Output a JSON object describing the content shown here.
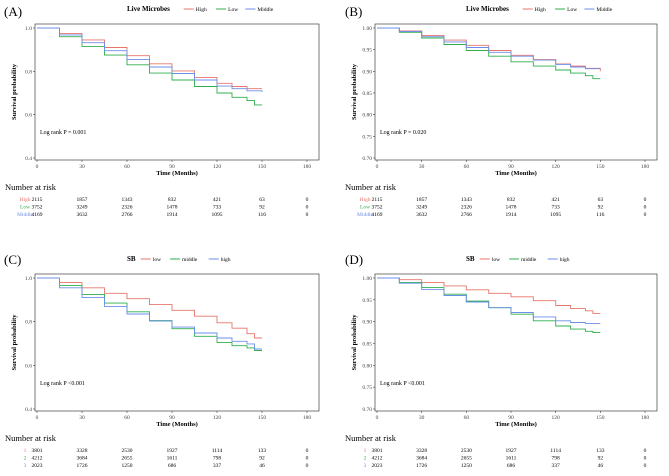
{
  "chart_data": [
    {
      "id": "A",
      "type": "line",
      "panel_label": "(A)",
      "legend_title": "Live Microbes",
      "xlabel": "Time (Months)",
      "ylabel": "Survival probability",
      "xlim": [
        0,
        180
      ],
      "ylim": [
        0.4,
        1.0
      ],
      "xticks": [
        "0",
        "30",
        "60",
        "90",
        "120",
        "150",
        "180"
      ],
      "yticks": [
        "0.4",
        "0.6",
        "0.8",
        "1.0"
      ],
      "annotation": "Log rank P = 0.001",
      "risk_title": "Number at risk",
      "series": [
        {
          "name": "High",
          "color": "#E8756B",
          "x": [
            0,
            15,
            30,
            45,
            60,
            75,
            90,
            105,
            120,
            130,
            140,
            150
          ],
          "y": [
            1.0,
            0.975,
            0.945,
            0.91,
            0.872,
            0.835,
            0.802,
            0.772,
            0.745,
            0.73,
            0.72,
            0.72
          ]
        },
        {
          "name": "Low",
          "color": "#2FAE4B",
          "x": [
            0,
            15,
            30,
            45,
            60,
            75,
            90,
            105,
            120,
            130,
            140,
            145,
            150
          ],
          "y": [
            1.0,
            0.96,
            0.915,
            0.875,
            0.83,
            0.792,
            0.76,
            0.73,
            0.7,
            0.68,
            0.665,
            0.645,
            0.645
          ]
        },
        {
          "name": "Middle",
          "color": "#6B8FE8",
          "x": [
            0,
            15,
            30,
            45,
            60,
            75,
            90,
            105,
            120,
            130,
            140,
            150
          ],
          "y": [
            1.0,
            0.968,
            0.932,
            0.895,
            0.855,
            0.82,
            0.79,
            0.76,
            0.732,
            0.72,
            0.71,
            0.705
          ]
        }
      ],
      "risk_table": [
        {
          "label": "High",
          "color": "#E8756B",
          "values": [
            "2115",
            "1857",
            "1343",
            "832",
            "421",
            "63",
            "0"
          ]
        },
        {
          "label": "Low",
          "color": "#2FAE4B",
          "values": [
            "3752",
            "3249",
            "2326",
            "1478",
            "733",
            "92",
            "0"
          ]
        },
        {
          "label": "Middle",
          "color": "#6B8FE8",
          "values": [
            "4169",
            "3632",
            "2766",
            "1914",
            "1095",
            "116",
            "0"
          ]
        }
      ]
    },
    {
      "id": "B",
      "type": "line",
      "panel_label": "(B)",
      "legend_title": "Live Microbes",
      "xlabel": "Time (Months)",
      "ylabel": "Survival probability",
      "xlim": [
        0,
        180
      ],
      "ylim": [
        0.7,
        1.0
      ],
      "xticks": [
        "0",
        "30",
        "60",
        "90",
        "120",
        "150",
        "180"
      ],
      "yticks": [
        "0.70",
        "0.75",
        "0.80",
        "0.85",
        "0.90",
        "0.95",
        "1.00"
      ],
      "annotation": "Log rank P = 0.020",
      "risk_title": "Number at risk",
      "series": [
        {
          "name": "High",
          "color": "#E8756B",
          "x": [
            0,
            15,
            30,
            45,
            60,
            75,
            90,
            105,
            120,
            130,
            140,
            150
          ],
          "y": [
            1.0,
            0.993,
            0.983,
            0.972,
            0.96,
            0.948,
            0.937,
            0.927,
            0.917,
            0.912,
            0.907,
            0.9
          ]
        },
        {
          "name": "Low",
          "color": "#2FAE4B",
          "x": [
            0,
            15,
            30,
            45,
            60,
            75,
            90,
            105,
            120,
            130,
            140,
            145,
            150
          ],
          "y": [
            1.0,
            0.99,
            0.977,
            0.962,
            0.948,
            0.935,
            0.922,
            0.912,
            0.903,
            0.896,
            0.89,
            0.883,
            0.883
          ]
        },
        {
          "name": "Middle",
          "color": "#6B8FE8",
          "x": [
            0,
            15,
            30,
            45,
            60,
            75,
            90,
            105,
            120,
            130,
            140,
            150
          ],
          "y": [
            1.0,
            0.992,
            0.98,
            0.968,
            0.955,
            0.944,
            0.935,
            0.926,
            0.916,
            0.91,
            0.906,
            0.906
          ]
        }
      ],
      "risk_table": [
        {
          "label": "High",
          "color": "#E8756B",
          "values": [
            "2115",
            "1857",
            "1343",
            "832",
            "421",
            "63",
            "0"
          ]
        },
        {
          "label": "Low",
          "color": "#2FAE4B",
          "values": [
            "3752",
            "3249",
            "2326",
            "1478",
            "733",
            "92",
            "0"
          ]
        },
        {
          "label": "Middle",
          "color": "#6B8FE8",
          "values": [
            "4169",
            "3632",
            "2766",
            "1914",
            "1095",
            "116",
            "0"
          ]
        }
      ]
    },
    {
      "id": "C",
      "type": "line",
      "panel_label": "(C)",
      "legend_title": "SB",
      "xlabel": "Time (Months)",
      "ylabel": "Survival probability",
      "xlim": [
        0,
        180
      ],
      "ylim": [
        0.4,
        1.0
      ],
      "xticks": [
        "0",
        "30",
        "60",
        "90",
        "120",
        "150",
        "180"
      ],
      "yticks": [
        "0.4",
        "0.6",
        "0.8",
        "1.0"
      ],
      "annotation": "Log rank P <0.001",
      "risk_title": "Number at risk",
      "series": [
        {
          "name": "low",
          "color": "#E8756B",
          "x": [
            0,
            15,
            30,
            45,
            60,
            75,
            90,
            105,
            120,
            130,
            140,
            145,
            150
          ],
          "y": [
            1.0,
            0.98,
            0.955,
            0.93,
            0.905,
            0.878,
            0.852,
            0.825,
            0.795,
            0.77,
            0.745,
            0.725,
            0.725
          ]
        },
        {
          "name": "middle",
          "color": "#2FAE4B",
          "x": [
            0,
            15,
            30,
            45,
            60,
            75,
            90,
            105,
            120,
            130,
            140,
            145,
            150
          ],
          "y": [
            1.0,
            0.965,
            0.925,
            0.885,
            0.845,
            0.805,
            0.768,
            0.733,
            0.705,
            0.69,
            0.68,
            0.668,
            0.668
          ]
        },
        {
          "name": "high",
          "color": "#6B8FE8",
          "x": [
            0,
            15,
            30,
            45,
            60,
            75,
            90,
            105,
            120,
            130,
            140,
            145,
            150
          ],
          "y": [
            1.0,
            0.955,
            0.91,
            0.87,
            0.835,
            0.803,
            0.775,
            0.748,
            0.725,
            0.71,
            0.698,
            0.675,
            0.675
          ]
        }
      ],
      "risk_table": [
        {
          "label": "1",
          "color": "#E8756B",
          "values": [
            "3801",
            "3328",
            "2530",
            "1927",
            "1114",
            "133",
            "0"
          ]
        },
        {
          "label": "2",
          "color": "#2FAE4B",
          "values": [
            "4212",
            "3684",
            "2655",
            "1611",
            "798",
            "92",
            "0"
          ]
        },
        {
          "label": "3",
          "color": "#6B8FE8",
          "values": [
            "2023",
            "1726",
            "1250",
            "686",
            "337",
            "46",
            "0"
          ]
        }
      ]
    },
    {
      "id": "D",
      "type": "line",
      "panel_label": "(D)",
      "legend_title": "SB",
      "xlabel": "Time (Months)",
      "ylabel": "Survival probability",
      "xlim": [
        0,
        180
      ],
      "ylim": [
        0.7,
        1.0
      ],
      "xticks": [
        "0",
        "30",
        "60",
        "90",
        "120",
        "150",
        "180"
      ],
      "yticks": [
        "0.70",
        "0.75",
        "0.80",
        "0.85",
        "0.90",
        "0.95",
        "1.00"
      ],
      "annotation": "Log rank P <0.001",
      "risk_title": "Number at risk",
      "series": [
        {
          "name": "low",
          "color": "#E8756B",
          "x": [
            0,
            15,
            30,
            45,
            60,
            75,
            90,
            105,
            120,
            130,
            140,
            145,
            150
          ],
          "y": [
            1.0,
            0.996,
            0.99,
            0.982,
            0.973,
            0.965,
            0.957,
            0.948,
            0.937,
            0.93,
            0.925,
            0.919,
            0.919
          ]
        },
        {
          "name": "middle",
          "color": "#2FAE4B",
          "x": [
            0,
            15,
            30,
            45,
            60,
            75,
            90,
            105,
            120,
            130,
            140,
            145,
            150
          ],
          "y": [
            1.0,
            0.99,
            0.978,
            0.963,
            0.947,
            0.932,
            0.917,
            0.902,
            0.89,
            0.883,
            0.878,
            0.875,
            0.875
          ]
        },
        {
          "name": "high",
          "color": "#6B8FE8",
          "x": [
            0,
            15,
            30,
            45,
            60,
            75,
            90,
            105,
            120,
            130,
            140,
            145,
            150
          ],
          "y": [
            1.0,
            0.988,
            0.974,
            0.96,
            0.945,
            0.932,
            0.921,
            0.911,
            0.902,
            0.898,
            0.896,
            0.896,
            0.896
          ]
        }
      ],
      "risk_table": [
        {
          "label": "1",
          "color": "#E8756B",
          "values": [
            "3801",
            "3328",
            "2530",
            "1927",
            "1114",
            "133",
            "0"
          ]
        },
        {
          "label": "2",
          "color": "#2FAE4B",
          "values": [
            "4212",
            "3684",
            "2655",
            "1611",
            "798",
            "92",
            "0"
          ]
        },
        {
          "label": "3",
          "color": "#6B8FE8",
          "values": [
            "2023",
            "1726",
            "1250",
            "686",
            "337",
            "46",
            "0"
          ]
        }
      ]
    }
  ]
}
